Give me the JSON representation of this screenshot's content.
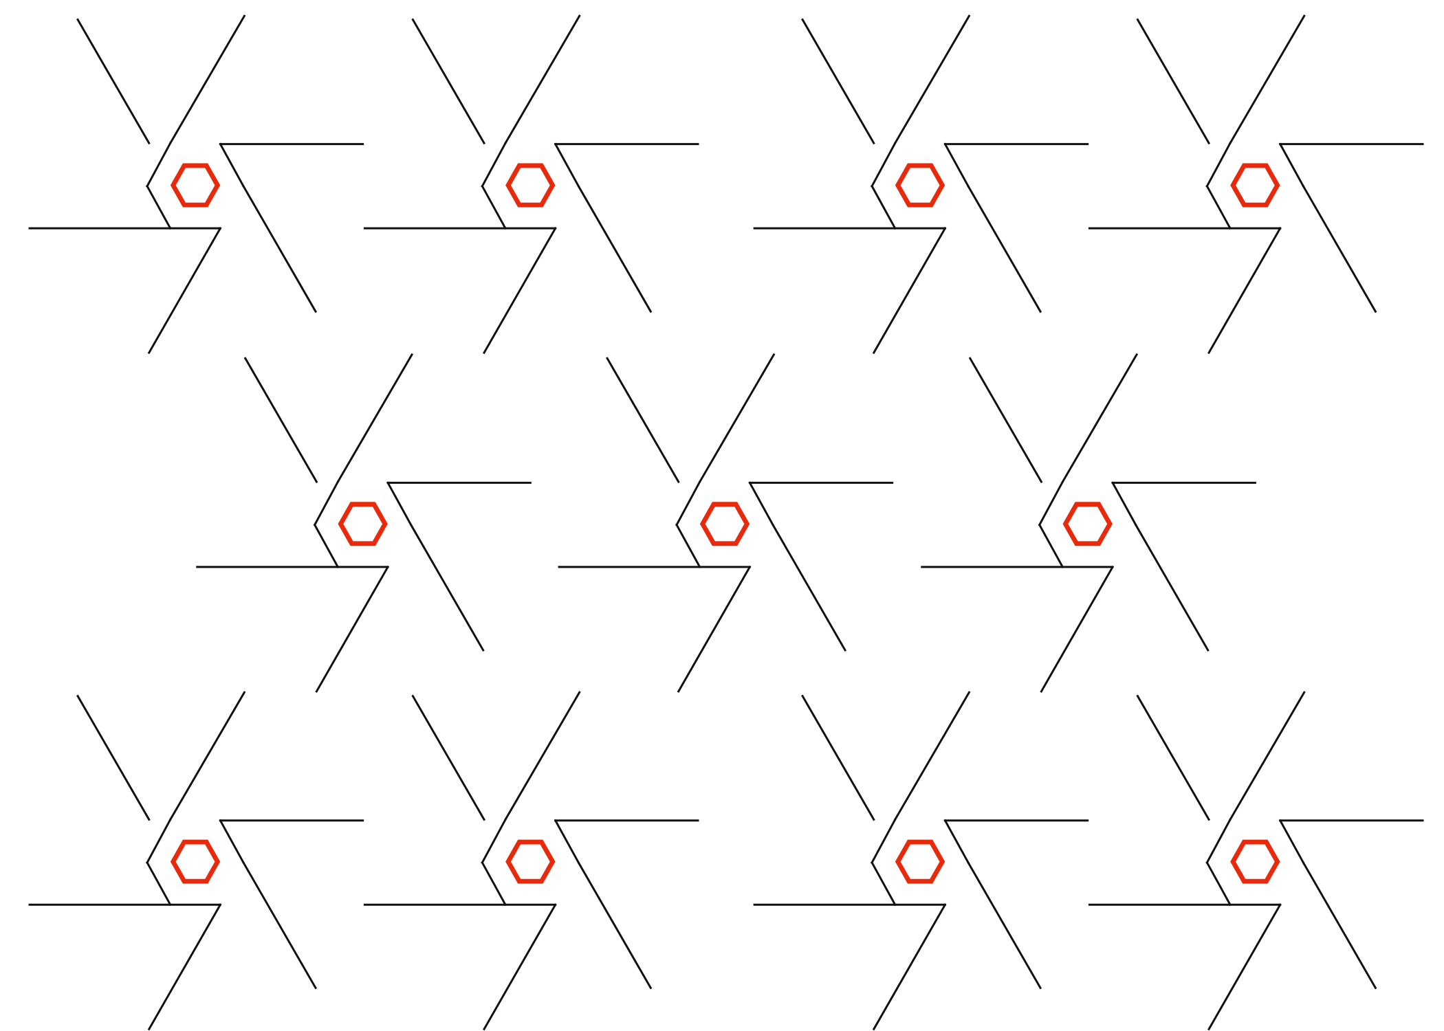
{
  "figure": {
    "description_type": "pinwheel-motif-pattern",
    "motif_count": 11,
    "rows": [
      {
        "row": 1,
        "motif_count": 4
      },
      {
        "row": 2,
        "motif_count": 3
      },
      {
        "row": 3,
        "motif_count": 4
      }
    ],
    "colors": {
      "background": "#ffffff",
      "line": "#111111",
      "hexagon": "#e8290b"
    }
  }
}
